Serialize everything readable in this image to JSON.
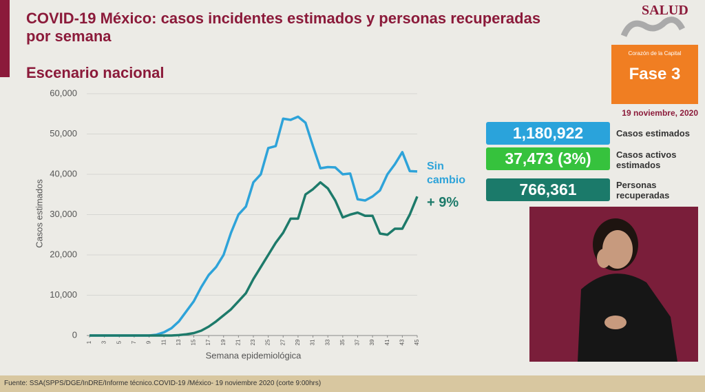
{
  "header": {
    "title": "COVID-19 México: casos incidentes estimados y personas recuperadas por semana",
    "subtitle": "Escenario nacional"
  },
  "logo": {
    "text": "SALUD"
  },
  "phase": {
    "caption": "Corazón de la Capital",
    "label": "Fase 3",
    "date": "19 noviembre, 2020"
  },
  "stats": [
    {
      "value": "1,180,922",
      "label": "Casos estimados"
    },
    {
      "value": "37,473 (3%)",
      "label": "Casos activos estimados"
    },
    {
      "value": "766,361",
      "label": "Personas recuperadas"
    }
  ],
  "footer": "Fuente: SSA(SPPS/DGE/InDRE/Informe técnico.COVID-19 /México- 19 noviembre 2020 (corte 9:00hrs)",
  "chart_data": {
    "type": "line",
    "x_label": "Semana epidemiológica",
    "y_label": "Casos estimados",
    "x": [
      1,
      2,
      3,
      4,
      5,
      6,
      7,
      8,
      9,
      10,
      11,
      12,
      13,
      14,
      15,
      16,
      17,
      18,
      19,
      20,
      21,
      22,
      23,
      24,
      25,
      26,
      27,
      28,
      29,
      30,
      31,
      32,
      33,
      34,
      35,
      36,
      37,
      38,
      39,
      40,
      41,
      42,
      43,
      44,
      45
    ],
    "series": [
      {
        "color": "#2ea3d9",
        "values": [
          0,
          0,
          0,
          0,
          0,
          0,
          0,
          0,
          0,
          200,
          800,
          1800,
          3500,
          6000,
          8500,
          12000,
          15000,
          17000,
          20000,
          25500,
          30000,
          32000,
          38000,
          40000,
          46500,
          47000,
          53800,
          53500,
          54300,
          52800,
          47000,
          41500,
          41800,
          41700,
          40000,
          40200,
          33800,
          33500,
          34500,
          36000,
          40000,
          42500,
          45500,
          40800,
          40700
        ]
      },
      {
        "color": "#1d7a6a",
        "values": [
          0,
          0,
          0,
          0,
          0,
          0,
          0,
          0,
          0,
          0,
          0,
          0,
          100,
          300,
          600,
          1200,
          2200,
          3500,
          5000,
          6500,
          8500,
          10500,
          14000,
          17000,
          20000,
          23000,
          25500,
          29000,
          29000,
          35000,
          36300,
          38000,
          36500,
          33500,
          29300,
          30000,
          30500,
          29700,
          29700,
          25300,
          25000,
          26500,
          26500,
          30000,
          34500
        ]
      }
    ],
    "annotations": [
      "Sin cambio",
      "+ 9%"
    ],
    "xlim": [
      1,
      45
    ],
    "xticks": [
      1,
      3,
      5,
      7,
      9,
      11,
      13,
      15,
      17,
      19,
      21,
      23,
      25,
      27,
      29,
      31,
      33,
      35,
      37,
      39,
      41,
      43,
      45
    ],
    "ylim": [
      0,
      60000
    ],
    "yticks": [
      0,
      {
        "value": 10000,
        "label": "10,000"
      },
      {
        "value": 20000,
        "label": "20,000"
      },
      {
        "value": 30000,
        "label": "30,000"
      },
      {
        "value": 40000,
        "label": "40,000"
      },
      {
        "value": 50000,
        "label": "50,000"
      },
      {
        "value": 60000,
        "label": "60,000"
      }
    ],
    "grid": true
  }
}
